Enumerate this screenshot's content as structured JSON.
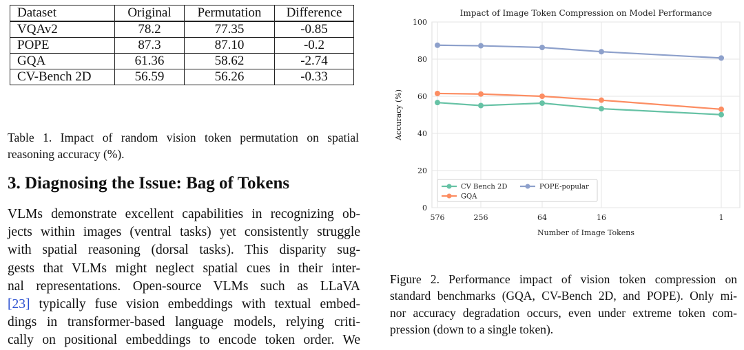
{
  "table": {
    "headers": [
      "Dataset",
      "Original",
      "Permutation",
      "Difference"
    ],
    "rows": [
      [
        "VQAv2",
        "78.2",
        "77.35",
        "-0.85"
      ],
      [
        "POPE",
        "87.3",
        "87.10",
        "-0.2"
      ],
      [
        "GQA",
        "61.36",
        "58.62",
        "-2.74"
      ],
      [
        "CV-Bench 2D",
        "56.59",
        "56.26",
        "-0.33"
      ]
    ],
    "caption_lines": [
      "Table 1.  Impact of random vision token permutation on spatial",
      "reasoning accuracy (%)."
    ]
  },
  "section": {
    "heading": "3. Diagnosing the Issue: Bag of Tokens",
    "body_lines": [
      "VLMs demonstrate excellent capabilities in recognizing ob-",
      "jects within images (ventral tasks) yet consistently struggle",
      "with spatial reasoning (dorsal tasks).  This disparity sug-",
      "gests that VLMs might neglect spatial cues in their inter-",
      "nal representations.  Open-source VLMs such as LLaVA",
      "[23] typically fuse vision embeddings with textual embed-",
      "dings in transformer-based language models, relying criti-",
      "cally on positional embeddings to encode token order.  We"
    ]
  },
  "figure": {
    "caption_lines": [
      "Figure 2.  Performance impact of vision token compression on",
      "standard benchmarks (GQA, CV-Bench 2D, and POPE). Only mi-",
      "nor accuracy degradation occurs, even under extreme token com-",
      "pression (down to a single token)."
    ]
  },
  "chart_data": {
    "type": "line",
    "title": "Impact of Image Token Compression on Model Performance",
    "xlabel": "Number of Image Tokens",
    "ylabel": "Accuracy (%)",
    "x": [
      "576",
      "256",
      "64",
      "16",
      "1"
    ],
    "ylim": [
      0,
      100
    ],
    "yticks": [
      "0",
      "20",
      "40",
      "60",
      "80",
      "100"
    ],
    "grid": true,
    "legend_position": "lower-left",
    "series": [
      {
        "name": "CV Bench 2D",
        "color": "#66c2a5",
        "values": [
          56.6,
          55.0,
          56.3,
          53.3,
          50.1
        ]
      },
      {
        "name": "GQA",
        "color": "#fc8d62",
        "values": [
          61.5,
          61.2,
          60.0,
          57.9,
          53.0
        ]
      },
      {
        "name": "POPE-popular",
        "color": "#8da0cb",
        "values": [
          87.5,
          87.2,
          86.3,
          84.0,
          80.6
        ]
      }
    ]
  }
}
